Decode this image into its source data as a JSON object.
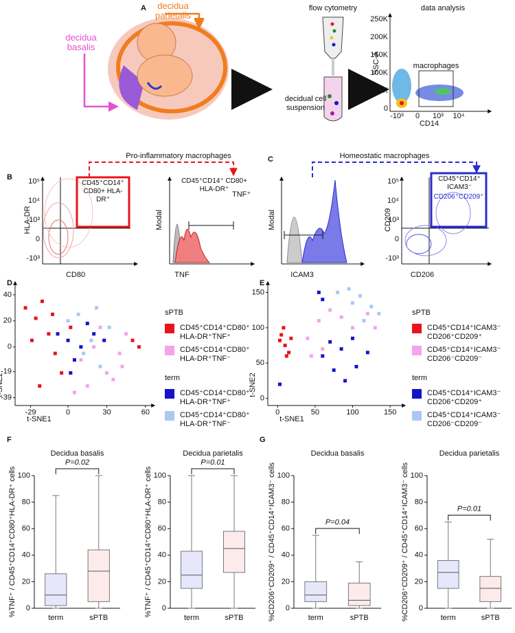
{
  "panels": {
    "a": {
      "label": "A",
      "decidua_parietalis": "decidua parietalis",
      "decidua_basalis": "decidua basalis",
      "flow": "flow cytometry",
      "suspension": "decidual cell suspension",
      "analysis": "data analysis",
      "gate": "macrophages",
      "ylabel": "SSC-A",
      "xlabel": "CD14",
      "yticks": [
        "250K",
        "200K",
        "150K",
        "100K",
        "50K",
        "0"
      ],
      "xticks": [
        "-10³",
        "0",
        "10³",
        "10⁴"
      ]
    },
    "b": {
      "label": "B",
      "title": "Pro-inflammatory macrophages",
      "gate": "CD45⁺CD14⁺ CD80+ HLA-DR⁺",
      "hist_label": "CD45⁺CD14⁺ CD80+ HLA-DR⁺",
      "hist_marker": "TNF⁺",
      "contour_xlabel": "CD80",
      "contour_ylabel": "HLA-DR",
      "hist_xlabel": "TNF",
      "hist_ylabel": "Modal",
      "yticks": [
        "10⁵",
        "10⁴",
        "10³",
        "0",
        "-10³"
      ]
    },
    "c": {
      "label": "C",
      "title": "Homeostatic macrophages",
      "gate": "CD45⁺CD14⁺ ICAM3⁻",
      "gate_marker": "CD206⁺CD209⁺",
      "hist_xlabel": "ICAM3",
      "hist_ylabel": "Modal",
      "contour_xlabel": "CD206",
      "contour_ylabel": "CD209",
      "yticks": [
        "10⁵",
        "10⁴",
        "10³",
        "0",
        "-10³"
      ]
    },
    "d": {
      "label": "D"
    },
    "e": {
      "label": "E"
    },
    "f": {
      "label": "F"
    },
    "g": {
      "label": "G"
    }
  },
  "chart_data": [
    {
      "type": "scatter",
      "xlabel": "t-SNE1",
      "ylabel": "t-SNE2",
      "xlim": [
        -41,
        67
      ],
      "ylim": [
        -45,
        50
      ],
      "xticks": [
        -29,
        0,
        30,
        60
      ],
      "yticks": [
        40,
        20,
        0,
        -19,
        -39
      ],
      "series": [
        {
          "group": "sPTB",
          "name": "CD45⁺CD14⁺CD80⁺ HLA-DR⁺TNF⁺",
          "color": "#e8141c",
          "x": [
            -33,
            -25,
            -20,
            -15,
            -10,
            -5,
            -22,
            -28,
            -12,
            2,
            55,
            50
          ],
          "values": [
            30,
            22,
            35,
            10,
            -5,
            -20,
            -30,
            5,
            25,
            15,
            0,
            5
          ]
        },
        {
          "group": "sPTB",
          "name": "CD45⁺CD14⁺CD80⁺ HLA-DR⁺TNF⁻",
          "color": "#f4a3ec",
          "x": [
            10,
            20,
            30,
            40,
            45,
            25,
            15,
            35,
            5,
            42
          ],
          "values": [
            -10,
            0,
            -20,
            -5,
            10,
            15,
            -30,
            -25,
            -35,
            -15
          ]
        },
        {
          "group": "term",
          "name": "CD45⁺CD14⁺CD80⁺ HLA-DR⁺TNF⁺",
          "color": "#1414c8",
          "x": [
            -8,
            0,
            5,
            10,
            20,
            28,
            2,
            15
          ],
          "values": [
            10,
            5,
            -10,
            0,
            10,
            5,
            -20,
            18
          ]
        },
        {
          "group": "term",
          "name": "CD45⁺CD14⁺CD80⁺ HLA-DR⁺TNF⁻",
          "color": "#a9c9f2",
          "x": [
            0,
            8,
            12,
            18,
            25,
            32,
            22
          ],
          "values": [
            20,
            25,
            -5,
            5,
            -15,
            15,
            30
          ]
        }
      ]
    },
    {
      "type": "scatter",
      "xlabel": "t-SNE1",
      "ylabel": "t-SNE2",
      "xlim": [
        -13,
        170
      ],
      "ylim": [
        -10,
        165
      ],
      "xticks": [
        0,
        50,
        100,
        150
      ],
      "yticks": [
        0,
        50,
        100,
        150
      ],
      "series": [
        {
          "group": "sPTB",
          "name": "CD45⁺CD14⁺ICAM3⁻ CD206⁺CD209⁺",
          "color": "#e8141c",
          "x": [
            5,
            10,
            15,
            8,
            18,
            12,
            3
          ],
          "values": [
            90,
            75,
            65,
            100,
            85,
            60,
            82
          ]
        },
        {
          "group": "sPTB",
          "name": "CD45⁺CD14⁺ICAM3⁻ CD206⁻CD209⁻",
          "color": "#f4a3ec",
          "x": [
            40,
            55,
            70,
            85,
            100,
            120,
            130,
            60,
            45
          ],
          "values": [
            85,
            110,
            125,
            115,
            100,
            120,
            100,
            70,
            60
          ]
        },
        {
          "group": "term",
          "name": "CD45⁺CD14⁺ICAM3⁻ CD206⁺CD209⁺",
          "color": "#1414c8",
          "x": [
            60,
            75,
            90,
            105,
            120,
            85,
            100,
            70,
            55,
            60,
            3
          ],
          "values": [
            60,
            40,
            25,
            45,
            65,
            70,
            85,
            80,
            150,
            140,
            20
          ]
        },
        {
          "group": "term",
          "name": "CD45⁺CD14⁺ICAM3⁻ CD206⁻CD209⁻",
          "color": "#a9c9f2",
          "x": [
            80,
            95,
            110,
            125,
            135,
            100,
            115
          ],
          "values": [
            150,
            155,
            145,
            130,
            120,
            135,
            110
          ]
        }
      ]
    },
    {
      "type": "box",
      "title": "Decidua basalis",
      "ylabel": "%TNF⁺ / CD45⁺CD14⁺CD80⁺HLA-DR⁺ cells",
      "annotation": "P=0.02",
      "categories": [
        "term",
        "sPTB"
      ],
      "ylim": [
        0,
        100
      ],
      "yticks": [
        0,
        20,
        40,
        60,
        80,
        100
      ],
      "boxes": [
        {
          "color": "#3a3adf",
          "min": 0,
          "q1": 2,
          "median": 10,
          "q3": 26,
          "max": 85
        },
        {
          "color": "#ef5b5b",
          "min": 0,
          "q1": 5,
          "median": 28,
          "q3": 44,
          "max": 100
        }
      ]
    },
    {
      "type": "box",
      "title": "Decidua parietalis",
      "ylabel": "%TNF⁺ / CD45⁺CD14⁺CD80⁺HLA-DR⁺ cells",
      "annotation": "P=0.01",
      "categories": [
        "term",
        "sPTB"
      ],
      "ylim": [
        0,
        100
      ],
      "yticks": [
        0,
        20,
        40,
        60,
        80,
        100
      ],
      "boxes": [
        {
          "color": "#3a3adf",
          "min": 0,
          "q1": 15,
          "median": 25,
          "q3": 43,
          "max": 100
        },
        {
          "color": "#ef5b5b",
          "min": 0,
          "q1": 27,
          "median": 45,
          "q3": 58,
          "max": 100
        }
      ]
    },
    {
      "type": "box",
      "title": "Decidua basalis",
      "ylabel": "%CD206⁺CD209⁺ / CD45⁺CD14⁺ICAM3⁻ cells",
      "annotation": "P=0.04",
      "categories": [
        "term",
        "sPTB"
      ],
      "ylim": [
        0,
        100
      ],
      "yticks": [
        0,
        20,
        40,
        60,
        80,
        100
      ],
      "boxes": [
        {
          "color": "#3a3adf",
          "min": 0,
          "q1": 5,
          "median": 10,
          "q3": 20,
          "max": 55
        },
        {
          "color": "#ef5b5b",
          "min": 0,
          "q1": 2,
          "median": 6,
          "q3": 19,
          "max": 35
        }
      ]
    },
    {
      "type": "box",
      "title": "Decidua parietalis",
      "ylabel": "%CD206⁺CD209⁺ / CD45⁺CD14⁺ICAM3⁻ cells",
      "annotation": "P=0.01",
      "categories": [
        "term",
        "sPTB"
      ],
      "ylim": [
        0,
        100
      ],
      "yticks": [
        0,
        20,
        40,
        60,
        80,
        100
      ],
      "boxes": [
        {
          "color": "#3a3adf",
          "min": 0,
          "q1": 15,
          "median": 27,
          "q3": 36,
          "max": 65
        },
        {
          "color": "#ef5b5b",
          "min": 0,
          "q1": 5,
          "median": 15,
          "q3": 24,
          "max": 52
        }
      ]
    }
  ]
}
